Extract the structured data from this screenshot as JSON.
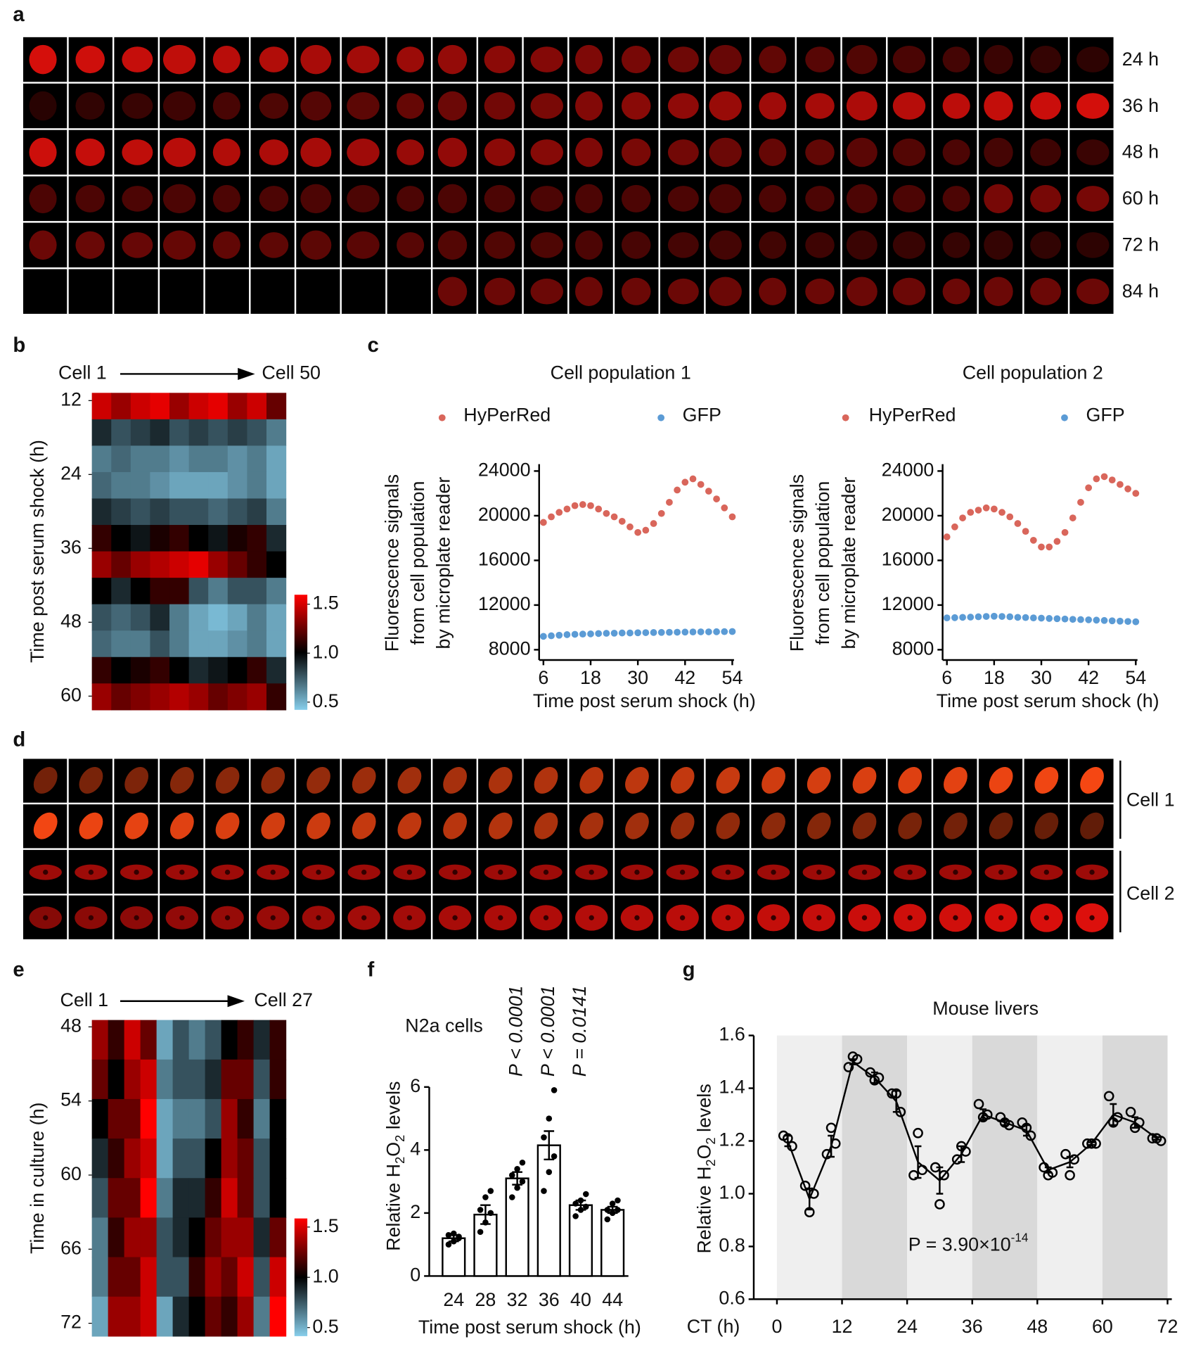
{
  "panel_labels": [
    "a",
    "b",
    "c",
    "d",
    "e",
    "f",
    "g"
  ],
  "panel_a": {
    "row_labels": [
      "24 h",
      "36 h",
      "48 h",
      "60 h",
      "72 h",
      "84 h"
    ]
  },
  "panel_d": {
    "group_labels": [
      "Cell 1",
      "Cell 2"
    ]
  },
  "chart_data": [
    {
      "type": "heatmap",
      "x_start_label": "Cell 1",
      "x_end_label": "Cell 50",
      "y_label": "Time post serum shock (h)",
      "ylim": [
        12,
        60
      ],
      "yticks": [
        12,
        24,
        36,
        48,
        60
      ],
      "clim": [
        0.5,
        1.5
      ],
      "cticks": [
        0.5,
        {
          "value": 1,
          "label": "1.0"
        },
        1.5
      ],
      "colors": [
        "#87ceeb",
        "#000000",
        "#ff0000"
      ],
      "values": [
        [
          1.4,
          1.3,
          1.4,
          1.45,
          1.3,
          1.4,
          1.45,
          1.3,
          1.4,
          1.2
        ],
        [
          0.9,
          0.8,
          0.85,
          0.9,
          0.8,
          0.85,
          0.8,
          0.85,
          0.8,
          0.7
        ],
        [
          0.7,
          0.75,
          0.7,
          0.7,
          0.65,
          0.7,
          0.7,
          0.65,
          0.7,
          0.6
        ],
        [
          0.75,
          0.7,
          0.7,
          0.65,
          0.6,
          0.6,
          0.6,
          0.65,
          0.7,
          0.6
        ],
        [
          0.9,
          0.85,
          0.8,
          0.85,
          0.8,
          0.8,
          0.75,
          0.8,
          0.85,
          0.7
        ],
        [
          1.1,
          1.0,
          0.95,
          1.05,
          1.1,
          1.0,
          0.95,
          1.05,
          1.1,
          0.9
        ],
        [
          1.3,
          1.2,
          1.3,
          1.35,
          1.4,
          1.45,
          1.3,
          1.2,
          1.1,
          1.0
        ],
        [
          1.0,
          0.9,
          1.0,
          1.1,
          1.1,
          0.8,
          0.7,
          0.8,
          0.8,
          0.7
        ],
        [
          0.8,
          0.75,
          0.8,
          0.9,
          0.7,
          0.6,
          0.55,
          0.6,
          0.7,
          0.6
        ],
        [
          0.75,
          0.7,
          0.7,
          0.8,
          0.7,
          0.6,
          0.6,
          0.65,
          0.7,
          0.6
        ],
        [
          1.1,
          1.0,
          1.05,
          1.1,
          1.0,
          0.9,
          0.95,
          1.0,
          1.1,
          0.9
        ],
        [
          1.3,
          1.2,
          1.25,
          1.3,
          1.35,
          1.3,
          1.2,
          1.25,
          1.3,
          1.1
        ]
      ]
    },
    {
      "type": "scatter",
      "title": "Cell population 1",
      "y_label": [
        "Fluorescence signals",
        "from cell population",
        "by microplate reader"
      ],
      "x_label": "Time post serum shock (h)",
      "xlim": [
        6,
        54
      ],
      "xticks": [
        6,
        18,
        30,
        42,
        54
      ],
      "ylim": [
        8000,
        24000
      ],
      "yticks": [
        8000,
        12000,
        16000,
        20000,
        24000
      ],
      "x": [
        6,
        8,
        10,
        12,
        14,
        16,
        18,
        20,
        22,
        24,
        26,
        28,
        30,
        32,
        34,
        36,
        38,
        40,
        42,
        44,
        46,
        48,
        50,
        52,
        54
      ],
      "series": [
        {
          "name": "HyPerRed",
          "color": "#d9665b",
          "values": [
            19400,
            19900,
            20300,
            20600,
            20900,
            21000,
            20900,
            20600,
            20200,
            19900,
            19500,
            19000,
            18500,
            18700,
            19300,
            20200,
            21200,
            22300,
            23000,
            23300,
            22800,
            22200,
            21500,
            20700,
            19900
          ]
        },
        {
          "name": "GFP",
          "color": "#5b9bd5",
          "values": [
            9200,
            9250,
            9300,
            9350,
            9380,
            9400,
            9420,
            9450,
            9470,
            9480,
            9500,
            9500,
            9520,
            9530,
            9540,
            9550,
            9560,
            9570,
            9580,
            9590,
            9600,
            9600,
            9610,
            9620,
            9630
          ]
        }
      ]
    },
    {
      "type": "scatter",
      "title": "Cell population 2",
      "y_label": [
        "Fluorescence signals",
        "from cell population",
        "by microplate reader"
      ],
      "x_label": "Time post serum shock (h)",
      "xlim": [
        6,
        54
      ],
      "xticks": [
        6,
        18,
        30,
        42,
        54
      ],
      "ylim": [
        8000,
        24000
      ],
      "yticks": [
        8000,
        12000,
        16000,
        20000,
        24000
      ],
      "x": [
        6,
        8,
        10,
        12,
        14,
        16,
        18,
        20,
        22,
        24,
        26,
        28,
        30,
        32,
        34,
        36,
        38,
        40,
        42,
        44,
        46,
        48,
        50,
        52,
        54
      ],
      "series": [
        {
          "name": "HyPerRed",
          "color": "#d9665b",
          "values": [
            18100,
            19000,
            19800,
            20300,
            20500,
            20700,
            20600,
            20300,
            19900,
            19300,
            18600,
            17800,
            17200,
            17200,
            17700,
            18500,
            19800,
            21200,
            22500,
            23300,
            23500,
            23200,
            22800,
            22400,
            22000
          ]
        },
        {
          "name": "GFP",
          "color": "#5b9bd5",
          "values": [
            10850,
            10870,
            10900,
            10920,
            10950,
            10980,
            11000,
            10980,
            10950,
            10900,
            10880,
            10850,
            10830,
            10800,
            10780,
            10750,
            10720,
            10700,
            10680,
            10650,
            10620,
            10590,
            10560,
            10530,
            10500
          ]
        }
      ]
    },
    {
      "type": "heatmap",
      "x_start_label": "Cell 1",
      "x_end_label": "Cell 27",
      "y_label": "Time in culture (h)",
      "ylim": [
        48,
        72
      ],
      "yticks": [
        48,
        54,
        60,
        66,
        72
      ],
      "clim": [
        0.5,
        1.5
      ],
      "cticks": [
        0.5,
        {
          "value": 1,
          "label": "1.0"
        },
        1.5
      ],
      "colors": [
        "#87ceeb",
        "#000000",
        "#ff0000"
      ],
      "values": [
        [
          1.3,
          1.1,
          1.4,
          1.2,
          0.6,
          0.8,
          0.7,
          0.8,
          1.0,
          1.1,
          0.9,
          1.1
        ],
        [
          1.2,
          1.0,
          1.3,
          1.4,
          0.7,
          0.8,
          0.8,
          0.9,
          1.2,
          1.2,
          0.8,
          1.1
        ],
        [
          1.0,
          1.2,
          1.2,
          1.5,
          0.6,
          0.7,
          0.7,
          0.8,
          1.3,
          1.1,
          0.7,
          1.0
        ],
        [
          0.9,
          1.1,
          1.3,
          1.4,
          0.6,
          0.8,
          0.8,
          1.0,
          1.3,
          1.2,
          0.8,
          1.0
        ],
        [
          0.8,
          1.2,
          1.2,
          1.5,
          0.7,
          0.9,
          0.9,
          1.1,
          1.4,
          1.2,
          0.8,
          1.0
        ],
        [
          0.7,
          1.1,
          1.3,
          1.3,
          0.8,
          0.9,
          1.0,
          1.2,
          1.3,
          1.3,
          0.9,
          1.2
        ],
        [
          0.7,
          1.2,
          1.2,
          1.4,
          0.8,
          0.8,
          1.1,
          1.3,
          1.2,
          1.4,
          0.8,
          1.4
        ],
        [
          0.6,
          1.3,
          1.3,
          1.4,
          0.6,
          0.9,
          1.0,
          1.2,
          1.1,
          1.3,
          0.7,
          1.5
        ]
      ]
    },
    {
      "type": "bar",
      "title": "N2a cells",
      "y_label_parts": [
        "Relative H",
        "2",
        "O",
        "2",
        " levels"
      ],
      "x_label": "Time post serum shock (h)",
      "categories": [
        "24",
        "28",
        "32",
        "36",
        "40",
        "44"
      ],
      "values": [
        1.2,
        1.95,
        3.1,
        4.15,
        2.25,
        2.1
      ],
      "errors": [
        0.1,
        0.3,
        0.2,
        0.45,
        0.15,
        0.1
      ],
      "points": [
        [
          1.0,
          1.1,
          1.2,
          1.3,
          1.35,
          1.25
        ],
        [
          1.4,
          1.7,
          2.0,
          2.1,
          2.5,
          2.7
        ],
        [
          2.5,
          2.8,
          3.0,
          3.2,
          3.4,
          3.6
        ],
        [
          2.7,
          3.3,
          3.8,
          4.4,
          5.0,
          5.9
        ],
        [
          1.9,
          2.1,
          2.2,
          2.3,
          2.4,
          2.6
        ],
        [
          1.8,
          2.0,
          2.1,
          2.1,
          2.3,
          2.4
        ]
      ],
      "ylim": [
        0,
        6
      ],
      "yticks": [
        0,
        2,
        4,
        6
      ],
      "annotations": [
        {
          "x": "32",
          "text": "P < 0.0001"
        },
        {
          "x": "36",
          "text": "P < 0.0001"
        },
        {
          "x": "40",
          "text": "P = 0.0141"
        }
      ]
    },
    {
      "type": "line",
      "title": "Mouse livers",
      "y_label_parts": [
        "Relative H",
        "2",
        "O",
        "2",
        " levels"
      ],
      "x_label": "CT (h)",
      "annotation_parts": [
        "P = 3.90×10",
        "-14"
      ],
      "x": [
        2,
        6,
        10,
        14,
        18,
        22,
        26,
        30,
        34,
        38,
        42,
        46,
        50,
        54,
        58,
        62,
        66,
        70
      ],
      "values": [
        1.2,
        0.98,
        1.18,
        1.5,
        1.44,
        1.35,
        1.12,
        1.05,
        1.15,
        1.3,
        1.27,
        1.24,
        1.09,
        1.12,
        1.19,
        1.3,
        1.27,
        1.21
      ],
      "errors": [
        0.02,
        0.04,
        0.04,
        0.01,
        0.02,
        0.04,
        0.06,
        0.05,
        0.03,
        0.02,
        0.01,
        0.02,
        0.01,
        0.02,
        0.005,
        0.04,
        0.02,
        0.005
      ],
      "points": [
        [
          1.22,
          1.21,
          1.18
        ],
        [
          1.03,
          0.93,
          1.0
        ],
        [
          1.15,
          1.25,
          1.19
        ],
        [
          1.48,
          1.52,
          1.51
        ],
        [
          1.46,
          1.43,
          1.44
        ],
        [
          1.38,
          1.38,
          1.31
        ],
        [
          1.07,
          1.23,
          1.09
        ],
        [
          1.1,
          0.96,
          1.07
        ],
        [
          1.13,
          1.18,
          1.16
        ],
        [
          1.34,
          1.29,
          1.3
        ],
        [
          1.29,
          1.27,
          1.26
        ],
        [
          1.27,
          1.25,
          1.22
        ],
        [
          1.1,
          1.07,
          1.08
        ],
        [
          1.15,
          1.07,
          1.13
        ],
        [
          1.19,
          1.19,
          1.19
        ],
        [
          1.37,
          1.27,
          1.29
        ],
        [
          1.31,
          1.25,
          1.27
        ],
        [
          1.21,
          1.21,
          1.2
        ]
      ],
      "xlim": [
        0,
        72
      ],
      "xticks": [
        0,
        12,
        24,
        36,
        48,
        60,
        72
      ],
      "ylim": [
        0.6,
        1.6
      ],
      "yticks": [
        0.6,
        0.8,
        {
          "value": 1,
          "label": "1.0"
        },
        1.2,
        1.4,
        1.6
      ],
      "band_colors": [
        "#efefef",
        "#d9d9d9"
      ],
      "color": "#000000"
    }
  ]
}
